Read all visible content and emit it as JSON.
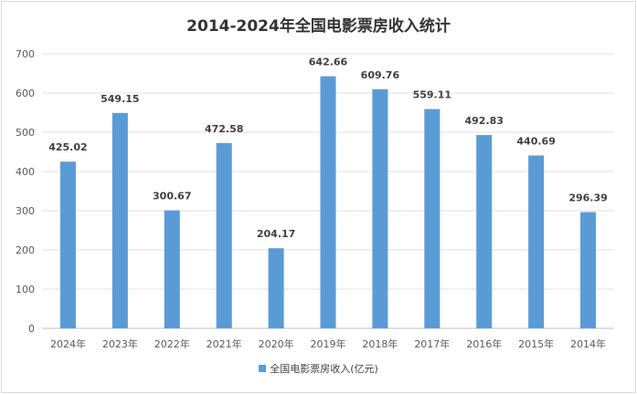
{
  "chart_data": {
    "type": "bar",
    "title": "2014-2024年全国电影票房收入统计",
    "categories": [
      "2024年",
      "2023年",
      "2022年",
      "2021年",
      "2020年",
      "2019年",
      "2018年",
      "2017年",
      "2016年",
      "2015年",
      "2014年"
    ],
    "series": [
      {
        "name": "全国电影票房收入(亿元)",
        "values": [
          425.02,
          549.15,
          300.67,
          472.58,
          204.17,
          642.66,
          609.76,
          559.11,
          492.83,
          440.69,
          296.39
        ],
        "color": "#5b9bd5"
      }
    ],
    "yticks": [
      "0",
      "100",
      "200",
      "300",
      "400",
      "500",
      "600",
      "700"
    ],
    "ylim": [
      0,
      700
    ],
    "grid": true,
    "legend_position": "bottom"
  }
}
